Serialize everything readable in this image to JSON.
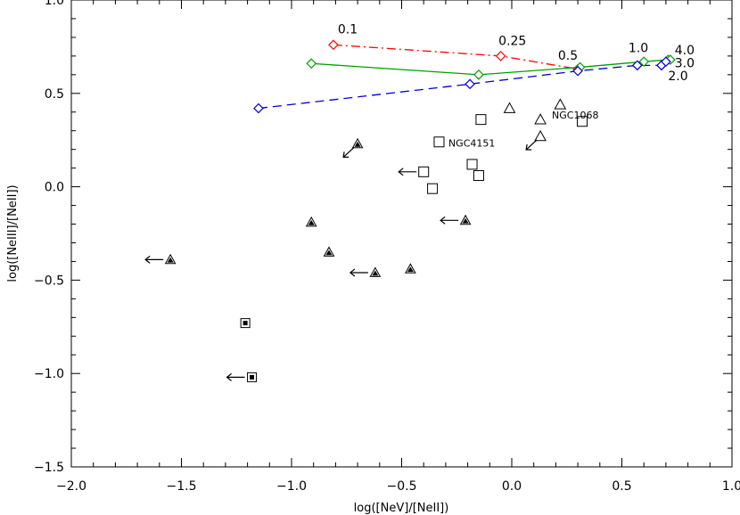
{
  "chart_data": {
    "type": "scatter",
    "title": "",
    "xlabel": "log([NeV]/[NeII])",
    "ylabel": "log([NeIII]/[NeII])",
    "xlim": [
      -2.0,
      1.0
    ],
    "ylim": [
      -1.5,
      1.0
    ],
    "x_ticks": [
      -2.0,
      -1.5,
      -1.0,
      -0.5,
      0.0,
      0.5,
      1.0
    ],
    "x_tick_labels": [
      "−2.0",
      "−1.5",
      "−1.0",
      "−0.5",
      "0.0",
      "0.5",
      "1.0"
    ],
    "y_ticks": [
      -1.5,
      -1.0,
      -0.5,
      0.0,
      0.5,
      1.0
    ],
    "y_tick_labels": [
      "−1.5",
      "−1.0",
      "−0.5",
      "0.0",
      "0.5",
      "1.0"
    ],
    "grid": false,
    "model_series": [
      {
        "name": "red dash-dot model",
        "color": "#ff0000",
        "style": "dashdot",
        "points": [
          [
            -0.81,
            0.76
          ],
          [
            -0.05,
            0.7
          ],
          [
            0.3,
            0.63
          ]
        ]
      },
      {
        "name": "green solid model",
        "color": "#00a000",
        "style": "solid",
        "points": [
          [
            -0.91,
            0.66
          ],
          [
            -0.15,
            0.6
          ],
          [
            0.31,
            0.64
          ],
          [
            0.6,
            0.67
          ],
          [
            0.71,
            0.68
          ],
          [
            0.72,
            0.68
          ]
        ]
      },
      {
        "name": "blue dashed model",
        "color": "#0000cc",
        "style": "dashed",
        "points": [
          [
            -1.15,
            0.42
          ],
          [
            -0.19,
            0.55
          ],
          [
            0.3,
            0.62
          ],
          [
            0.57,
            0.65
          ],
          [
            0.68,
            0.65
          ],
          [
            0.7,
            0.67
          ]
        ]
      }
    ],
    "model_labels": [
      {
        "text": "0.1",
        "x": -0.79,
        "y": 0.82
      },
      {
        "text": "0.25",
        "x": -0.06,
        "y": 0.76
      },
      {
        "text": "0.5",
        "x": 0.21,
        "y": 0.68
      },
      {
        "text": "1.0",
        "x": 0.53,
        "y": 0.72
      },
      {
        "text": "4.0",
        "x": 0.74,
        "y": 0.71
      },
      {
        "text": "3.0",
        "x": 0.74,
        "y": 0.64
      },
      {
        "text": "2.0",
        "x": 0.71,
        "y": 0.57
      }
    ],
    "open_squares": [
      [
        -0.33,
        0.24
      ],
      [
        -0.14,
        0.36
      ],
      [
        -0.4,
        0.08
      ],
      [
        -0.18,
        0.12
      ],
      [
        -0.15,
        0.06
      ],
      [
        -0.36,
        -0.01
      ],
      [
        0.32,
        0.35
      ]
    ],
    "open_triangles": [
      [
        -0.01,
        0.42
      ],
      [
        0.22,
        0.44
      ],
      [
        0.13,
        0.36
      ],
      [
        0.13,
        0.27
      ]
    ],
    "filled_triangles": [
      [
        -0.7,
        0.23
      ],
      [
        -0.91,
        -0.19
      ],
      [
        -0.83,
        -0.35
      ],
      [
        -0.62,
        -0.46
      ],
      [
        -0.46,
        -0.44
      ],
      [
        -0.21,
        -0.18
      ],
      [
        -1.55,
        -0.39
      ]
    ],
    "filled_squares": [
      [
        -1.21,
        -0.73
      ],
      [
        -1.18,
        -1.02
      ]
    ],
    "upper_limit_arrows_left": [
      [
        -1.55,
        -0.39
      ],
      [
        -0.62,
        -0.46
      ],
      [
        -0.21,
        -0.18
      ],
      [
        -0.4,
        0.08
      ],
      [
        -1.18,
        -1.02
      ]
    ],
    "diagonal_arrows": [
      [
        -0.7,
        0.23
      ],
      [
        0.13,
        0.27
      ]
    ],
    "annotations": [
      {
        "text": "NGC4151",
        "x": -0.32,
        "y": 0.24
      },
      {
        "text": "NGC1068",
        "x": 0.15,
        "y": 0.39
      }
    ]
  }
}
